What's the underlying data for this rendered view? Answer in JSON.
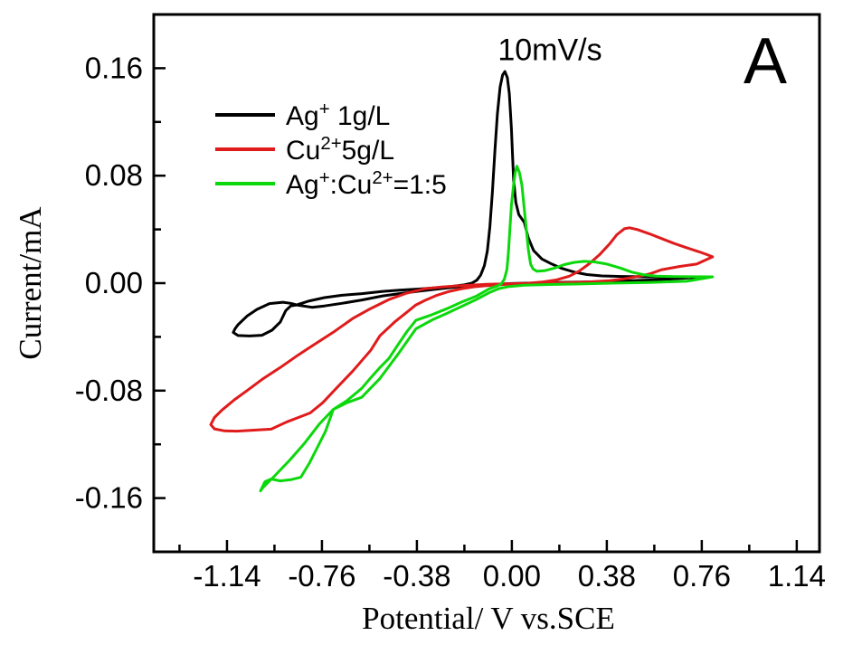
{
  "chart_data": {
    "type": "line",
    "annotation": "10mV/s",
    "panel_label": "A",
    "xlabel": "Potential/ V vs.SCE",
    "ylabel": "Current/mA",
    "xlim": [
      -1.433,
      1.231
    ],
    "ylim": [
      -0.2,
      0.2
    ],
    "grid": false,
    "legend_position": "upper-left-inside",
    "axis_color": "#000000",
    "background": "#ffffff",
    "x_ticks": {
      "values": [
        -1.14,
        -0.76,
        -0.38,
        0.0,
        0.38,
        0.76,
        1.14
      ],
      "labels": [
        "-1.14",
        "-0.76",
        "-0.38",
        "0.00",
        "0.38",
        "0.76",
        "1.14"
      ],
      "minor": [
        -1.33,
        -0.95,
        -0.57,
        -0.19,
        0.19,
        0.57,
        0.95
      ]
    },
    "y_ticks": {
      "values": [
        0.16,
        0.08,
        0.0,
        -0.08,
        -0.16
      ],
      "labels": [
        "0.16",
        "0.08",
        "0.00",
        "-0.08",
        "-0.16"
      ],
      "minor": [
        0.12,
        0.04,
        -0.04,
        -0.12
      ]
    },
    "series": [
      {
        "id": "ag",
        "label_plain": "Ag+ 1g/L",
        "label_rich": "Ag^{+} 1g/L",
        "color": "#000000",
        "line_width": 3,
        "points": [
          [
            0.785,
            0.0047
          ],
          [
            0.7,
            0.0038
          ],
          [
            0.6,
            0.0027
          ],
          [
            0.48,
            0.0018
          ],
          [
            0.36,
            0.0011
          ],
          [
            0.22,
            0.0007
          ],
          [
            0.1,
            0.0002
          ],
          [
            0.0,
            -0.0003
          ],
          [
            -0.1,
            -0.0012
          ],
          [
            -0.2,
            -0.0024
          ],
          [
            -0.29,
            -0.0042
          ],
          [
            -0.373,
            -0.006
          ],
          [
            -0.45,
            -0.0078
          ],
          [
            -0.517,
            -0.0095
          ],
          [
            -0.6,
            -0.0125
          ],
          [
            -0.68,
            -0.015
          ],
          [
            -0.75,
            -0.017
          ],
          [
            -0.8,
            -0.018
          ],
          [
            -0.861,
            -0.0162
          ],
          [
            -0.885,
            -0.017
          ],
          [
            -0.905,
            -0.0205
          ],
          [
            -0.927,
            -0.029
          ],
          [
            -0.96,
            -0.035
          ],
          [
            -1.0,
            -0.0388
          ],
          [
            -1.05,
            -0.0393
          ],
          [
            -1.096,
            -0.039
          ],
          [
            -1.115,
            -0.0367
          ],
          [
            -1.108,
            -0.034
          ],
          [
            -1.096,
            -0.031
          ],
          [
            -1.06,
            -0.0245
          ],
          [
            -1.02,
            -0.0195
          ],
          [
            -0.97,
            -0.0152
          ],
          [
            -0.916,
            -0.0142
          ],
          [
            -0.885,
            -0.015
          ],
          [
            -0.861,
            -0.0162
          ],
          [
            -0.81,
            -0.0132
          ],
          [
            -0.75,
            -0.0108
          ],
          [
            -0.68,
            -0.009
          ],
          [
            -0.6,
            -0.0078
          ],
          [
            -0.517,
            -0.0061
          ],
          [
            -0.45,
            -0.0052
          ],
          [
            -0.373,
            -0.0044
          ],
          [
            -0.3,
            -0.0034
          ],
          [
            -0.24,
            -0.0024
          ],
          [
            -0.19,
            -0.0012
          ],
          [
            -0.16,
            0.0
          ],
          [
            -0.14,
            0.0022
          ],
          [
            -0.125,
            0.006
          ],
          [
            -0.11,
            0.013
          ],
          [
            -0.098,
            0.024
          ],
          [
            -0.088,
            0.042
          ],
          [
            -0.078,
            0.068
          ],
          [
            -0.068,
            0.098
          ],
          [
            -0.058,
            0.126
          ],
          [
            -0.047,
            0.146
          ],
          [
            -0.037,
            0.155
          ],
          [
            -0.028,
            0.1575
          ],
          [
            -0.018,
            0.153
          ],
          [
            -0.01,
            0.141
          ],
          [
            -0.002,
            0.115
          ],
          [
            0.007,
            0.077
          ],
          [
            0.016,
            0.06
          ],
          [
            0.028,
            0.051
          ],
          [
            0.05,
            0.0452
          ],
          [
            0.065,
            0.034
          ],
          [
            0.087,
            0.0243
          ],
          [
            0.12,
            0.018
          ],
          [
            0.16,
            0.0142
          ],
          [
            0.2,
            0.011
          ],
          [
            0.25,
            0.0082
          ],
          [
            0.3,
            0.0064
          ],
          [
            0.36,
            0.0054
          ],
          [
            0.44,
            0.005
          ],
          [
            0.55,
            0.0047
          ],
          [
            0.67,
            0.0046
          ],
          [
            0.785,
            0.0047
          ]
        ]
      },
      {
        "id": "cu",
        "label_plain": "Cu2+ 5g/L",
        "label_rich": "Cu^{2+}5g/L",
        "color": "#e01b1b",
        "line_width": 3,
        "points": [
          [
            0.803,
            0.0196
          ],
          [
            0.74,
            0.0142
          ],
          [
            0.67,
            0.0124
          ],
          [
            0.6,
            0.01
          ],
          [
            0.55,
            0.0068
          ],
          [
            0.5,
            0.0048
          ],
          [
            0.45,
            0.0032
          ],
          [
            0.39,
            0.0018
          ],
          [
            0.3,
            0.0008
          ],
          [
            0.2,
            0.0003
          ],
          [
            0.1,
            0.0
          ],
          [
            0.0,
            -0.0004
          ],
          [
            -0.1,
            -0.0009
          ],
          [
            -0.2,
            -0.0018
          ],
          [
            -0.28,
            -0.0028
          ],
          [
            -0.347,
            -0.0041
          ],
          [
            -0.42,
            -0.0074
          ],
          [
            -0.492,
            -0.0122
          ],
          [
            -0.565,
            -0.0189
          ],
          [
            -0.637,
            -0.0263
          ],
          [
            -0.709,
            -0.0358
          ],
          [
            -0.782,
            -0.0446
          ],
          [
            -0.854,
            -0.0533
          ],
          [
            -0.927,
            -0.0628
          ],
          [
            -0.999,
            -0.0716
          ],
          [
            -1.06,
            -0.08
          ],
          [
            -1.11,
            -0.0868
          ],
          [
            -1.16,
            -0.0945
          ],
          [
            -1.19,
            -0.1
          ],
          [
            -1.205,
            -0.1053
          ],
          [
            -1.19,
            -0.1085
          ],
          [
            -1.15,
            -0.11
          ],
          [
            -1.1,
            -0.1102
          ],
          [
            -1.04,
            -0.1095
          ],
          [
            -0.963,
            -0.1087
          ],
          [
            -0.9,
            -0.1032
          ],
          [
            -0.84,
            -0.099
          ],
          [
            -0.807,
            -0.0966
          ],
          [
            -0.757,
            -0.089
          ],
          [
            -0.709,
            -0.0795
          ],
          [
            -0.637,
            -0.0655
          ],
          [
            -0.565,
            -0.05
          ],
          [
            -0.528,
            -0.0392
          ],
          [
            -0.47,
            -0.029
          ],
          [
            -0.42,
            -0.0216
          ],
          [
            -0.384,
            -0.0162
          ],
          [
            -0.347,
            -0.0128
          ],
          [
            -0.3,
            -0.009
          ],
          [
            -0.25,
            -0.0061
          ],
          [
            -0.2,
            -0.0041
          ],
          [
            -0.15,
            -0.0027
          ],
          [
            -0.1,
            -0.0018
          ],
          [
            -0.05,
            -0.0012
          ],
          [
            0.0,
            -0.0007
          ],
          [
            0.06,
            -0.0002
          ],
          [
            0.12,
            0.0008
          ],
          [
            0.18,
            0.0025
          ],
          [
            0.23,
            0.0052
          ],
          [
            0.27,
            0.009
          ],
          [
            0.31,
            0.0145
          ],
          [
            0.35,
            0.021
          ],
          [
            0.39,
            0.029
          ],
          [
            0.42,
            0.036
          ],
          [
            0.45,
            0.0405
          ],
          [
            0.47,
            0.0412
          ],
          [
            0.5,
            0.04
          ],
          [
            0.55,
            0.0368
          ],
          [
            0.6,
            0.0331
          ],
          [
            0.65,
            0.0295
          ],
          [
            0.7,
            0.0263
          ],
          [
            0.75,
            0.0233
          ],
          [
            0.78,
            0.0213
          ],
          [
            0.803,
            0.0196
          ]
        ]
      },
      {
        "id": "agcu",
        "label_plain": "Ag+:Cu2+=1:5",
        "label_rich": "Ag^{+}:Cu^{2+}=1:5",
        "color": "#0bd80b",
        "line_width": 3,
        "points": [
          [
            0.803,
            0.0047
          ],
          [
            0.72,
            0.0048
          ],
          [
            0.65,
            0.0049
          ],
          [
            0.58,
            0.0052
          ],
          [
            0.53,
            0.0061
          ],
          [
            0.48,
            0.0082
          ],
          [
            0.43,
            0.0115
          ],
          [
            0.38,
            0.0142
          ],
          [
            0.33,
            0.0158
          ],
          [
            0.29,
            0.0162
          ],
          [
            0.25,
            0.0155
          ],
          [
            0.21,
            0.0138
          ],
          [
            0.17,
            0.0112
          ],
          [
            0.13,
            0.0092
          ],
          [
            0.1,
            0.0088
          ],
          [
            0.085,
            0.0105
          ],
          [
            0.075,
            0.0142
          ],
          [
            0.066,
            0.025
          ],
          [
            0.058,
            0.04
          ],
          [
            0.05,
            0.0547
          ],
          [
            0.04,
            0.073
          ],
          [
            0.03,
            0.0825
          ],
          [
            0.02,
            0.0871
          ],
          [
            0.013,
            0.082
          ],
          [
            0.006,
            0.072
          ],
          [
            -0.002,
            0.058
          ],
          [
            -0.008,
            0.04
          ],
          [
            -0.014,
            0.022
          ],
          [
            -0.02,
            0.01
          ],
          [
            -0.03,
            0.003
          ],
          [
            -0.042,
            -0.0005
          ],
          [
            -0.06,
            -0.0022
          ],
          [
            -0.09,
            -0.0042
          ],
          [
            -0.14,
            -0.0095
          ],
          [
            -0.203,
            -0.0142
          ],
          [
            -0.26,
            -0.019
          ],
          [
            -0.32,
            -0.0235
          ],
          [
            -0.384,
            -0.0277
          ],
          [
            -0.42,
            -0.036
          ],
          [
            -0.456,
            -0.0459
          ],
          [
            -0.492,
            -0.056
          ],
          [
            -0.528,
            -0.0628
          ],
          [
            -0.565,
            -0.0705
          ],
          [
            -0.601,
            -0.0783
          ],
          [
            -0.66,
            -0.0875
          ],
          [
            -0.715,
            -0.094
          ],
          [
            -0.745,
            -0.11
          ],
          [
            -0.782,
            -0.1236
          ],
          [
            -0.811,
            -0.1343
          ],
          [
            -0.845,
            -0.1445
          ],
          [
            -0.885,
            -0.1463
          ],
          [
            -0.927,
            -0.1472
          ],
          [
            -0.963,
            -0.1458
          ],
          [
            -0.988,
            -0.1478
          ],
          [
            -1.006,
            -0.1546
          ],
          [
            -0.996,
            -0.1522
          ],
          [
            -0.951,
            -0.1438
          ],
          [
            -0.89,
            -0.132
          ],
          [
            -0.829,
            -0.119
          ],
          [
            -0.771,
            -0.105
          ],
          [
            -0.715,
            -0.094
          ],
          [
            -0.66,
            -0.089
          ],
          [
            -0.601,
            -0.085
          ],
          [
            -0.528,
            -0.071
          ],
          [
            -0.456,
            -0.053
          ],
          [
            -0.384,
            -0.034
          ],
          [
            -0.32,
            -0.0275
          ],
          [
            -0.26,
            -0.0225
          ],
          [
            -0.203,
            -0.0175
          ],
          [
            -0.14,
            -0.012
          ],
          [
            -0.09,
            -0.007
          ],
          [
            -0.05,
            -0.004
          ],
          [
            -0.01,
            -0.0025
          ],
          [
            0.05,
            -0.0015
          ],
          [
            0.15,
            -0.001
          ],
          [
            0.25,
            -0.0007
          ],
          [
            0.4,
            0.0
          ],
          [
            0.55,
            0.0005
          ],
          [
            0.7,
            0.0014
          ],
          [
            0.803,
            0.0047
          ]
        ]
      }
    ]
  }
}
